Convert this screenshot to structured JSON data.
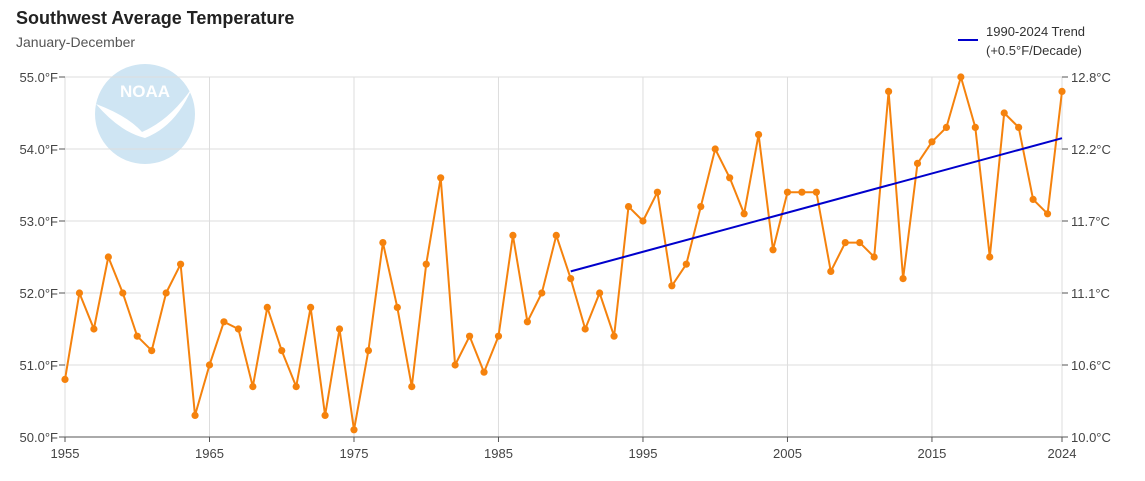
{
  "header": {
    "title": "Southwest Average Temperature",
    "subtitle": "January-December"
  },
  "colors": {
    "series": "#f5820d",
    "trend": "#0000cc",
    "grid": "#dddddd",
    "logo": "#cfe5f3"
  },
  "logo": {
    "text": "NOAA",
    "icon": "noaa-logo"
  },
  "chart_data": {
    "type": "line",
    "title": "Southwest Average Temperature",
    "subtitle": "January-December",
    "xlim": [
      1955,
      2024
    ],
    "ylim": [
      50.0,
      55.0
    ],
    "x_ticks": [
      1955,
      1965,
      1975,
      1985,
      1995,
      2005,
      2015,
      2024
    ],
    "y_ticks": [
      50.0,
      51.0,
      52.0,
      53.0,
      54.0,
      55.0
    ],
    "y_tick_labels": [
      "50.0°F",
      "51.0°F",
      "52.0°F",
      "53.0°F",
      "54.0°F",
      "55.0°F"
    ],
    "y2_ticks": [
      10.0,
      10.6,
      11.1,
      11.7,
      12.2,
      12.8
    ],
    "y2_tick_labels": [
      "10.0°C",
      "10.6°C",
      "11.1°C",
      "11.7°C",
      "12.2°C",
      "12.8°C"
    ],
    "grid": true,
    "legend_position": "top-right",
    "series": [
      {
        "x": [
          1955,
          1956,
          1957,
          1958,
          1959,
          1960,
          1961,
          1962,
          1963,
          1964,
          1965,
          1966,
          1967,
          1968,
          1969,
          1970,
          1971,
          1972,
          1973,
          1974,
          1975,
          1976,
          1977,
          1978,
          1979,
          1980,
          1981,
          1982,
          1983,
          1984,
          1985,
          1986,
          1987,
          1988,
          1989,
          1990,
          1991,
          1992,
          1993,
          1994,
          1995,
          1996,
          1997,
          1998,
          1999,
          2000,
          2001,
          2002,
          2003,
          2004,
          2005,
          2006,
          2007,
          2008,
          2009,
          2010,
          2011,
          2012,
          2013,
          2014,
          2015,
          2016,
          2017,
          2018,
          2019,
          2020,
          2021,
          2022,
          2023,
          2024
        ],
        "values": [
          50.8,
          52.0,
          51.5,
          52.5,
          52.0,
          51.4,
          51.2,
          52.0,
          52.4,
          50.3,
          51.0,
          51.6,
          51.5,
          50.7,
          51.8,
          51.2,
          50.7,
          51.8,
          50.3,
          51.5,
          50.1,
          51.2,
          52.7,
          51.8,
          50.7,
          52.4,
          53.6,
          51.0,
          51.4,
          50.9,
          51.4,
          52.8,
          51.6,
          52.0,
          52.8,
          52.2,
          51.5,
          52.0,
          51.4,
          53.2,
          53.0,
          53.4,
          52.1,
          52.4,
          53.2,
          54.0,
          53.6,
          53.1,
          54.2,
          52.6,
          53.4,
          53.4,
          53.4,
          52.3,
          52.7,
          52.7,
          52.5,
          54.8,
          52.2,
          53.8,
          54.1,
          54.3,
          55.0,
          54.3,
          52.5,
          54.5,
          54.3,
          53.3,
          53.1,
          54.8
        ]
      },
      {
        "name": "1990-2024 Trend\n(+0.5°F/Decade)",
        "x": [
          1990,
          2024
        ],
        "values": [
          52.3,
          54.15
        ]
      }
    ]
  }
}
